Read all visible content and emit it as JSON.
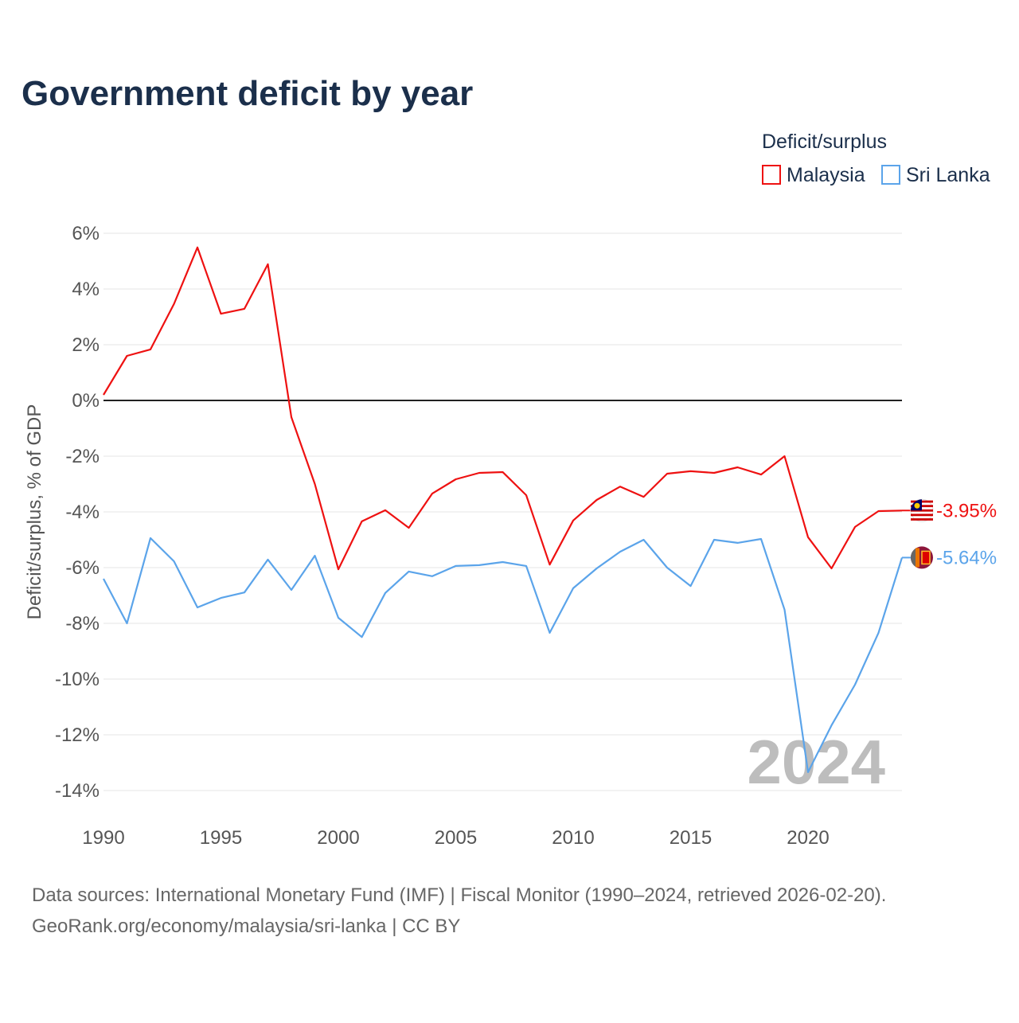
{
  "chart_data": {
    "type": "line",
    "title": "Government deficit by year",
    "xlabel": "",
    "ylabel": "Deficit/surplus, % of GDP",
    "xlim": [
      1990,
      2024
    ],
    "ylim": [
      -14,
      6
    ],
    "yticks": [
      6,
      4,
      2,
      0,
      -2,
      -4,
      -6,
      -8,
      -10,
      -12,
      -14
    ],
    "ytick_labels": [
      "6%",
      "4%",
      "2%",
      "0%",
      "-2%",
      "-4%",
      "-6%",
      "-8%",
      "-10%",
      "-12%",
      "-14%"
    ],
    "xticks": [
      1990,
      1995,
      2000,
      2005,
      2010,
      2015,
      2020
    ],
    "xtick_labels": [
      "1990",
      "1995",
      "2000",
      "2005",
      "2010",
      "2015",
      "2020"
    ],
    "grid": true,
    "legend_title": "Deficit/surplus",
    "legend_placement": "top-right",
    "watermark_year": "2024",
    "x": [
      1990,
      1991,
      1992,
      1993,
      1994,
      1995,
      1996,
      1997,
      1998,
      1999,
      2000,
      2001,
      2002,
      2003,
      2004,
      2005,
      2006,
      2007,
      2008,
      2009,
      2010,
      2011,
      2012,
      2013,
      2014,
      2015,
      2016,
      2017,
      2018,
      2019,
      2020,
      2021,
      2022,
      2023,
      2024
    ],
    "series": [
      {
        "name": "Malaysia",
        "color": "#ee1111",
        "end_label": "-3.95%",
        "values": [
          0.2,
          1.6,
          1.83,
          3.46,
          5.49,
          3.11,
          3.29,
          4.89,
          -0.6,
          -3.0,
          -6.06,
          -4.34,
          -3.94,
          -4.57,
          -3.34,
          -2.83,
          -2.6,
          -2.57,
          -3.4,
          -5.89,
          -4.31,
          -3.57,
          -3.09,
          -3.46,
          -2.63,
          -2.54,
          -2.6,
          -2.4,
          -2.66,
          -2.0,
          -4.91,
          -6.03,
          -4.54,
          -3.97,
          -3.95
        ]
      },
      {
        "name": "Sri Lanka",
        "color": "#5ba4ea",
        "end_label": "-5.64%",
        "values": [
          -6.4,
          -8.0,
          -4.94,
          -5.77,
          -7.43,
          -7.09,
          -6.89,
          -5.71,
          -6.8,
          -5.57,
          -7.8,
          -8.49,
          -6.91,
          -6.14,
          -6.31,
          -5.94,
          -5.91,
          -5.8,
          -5.94,
          -8.34,
          -6.74,
          -6.03,
          -5.43,
          -5.0,
          -6.0,
          -6.66,
          -5.0,
          -5.11,
          -4.97,
          -7.51,
          -13.34,
          -11.66,
          -10.2,
          -8.34,
          -5.64
        ]
      }
    ]
  },
  "footer": {
    "line1": "Data sources: International Monetary Fund (IMF) | Fiscal Monitor (1990–2024, retrieved 2026-02-20).",
    "line2": "GeoRank.org/economy/malaysia/sri-lanka | CC BY"
  }
}
